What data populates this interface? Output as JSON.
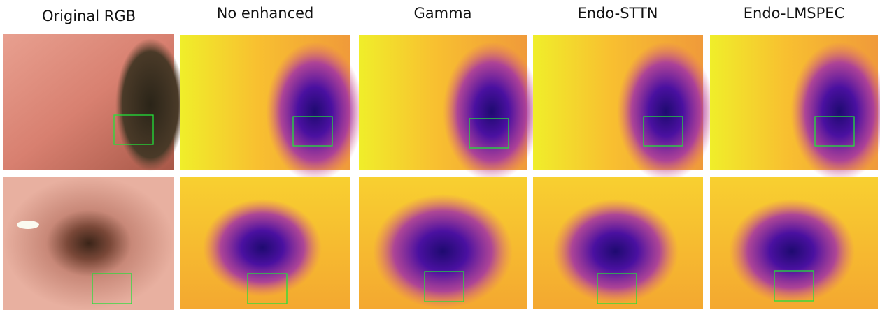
{
  "columns": [
    "Original RGB",
    "No enhanced",
    "Gamma",
    "Endo-STTN",
    "Endo-LMSPEC"
  ]
}
